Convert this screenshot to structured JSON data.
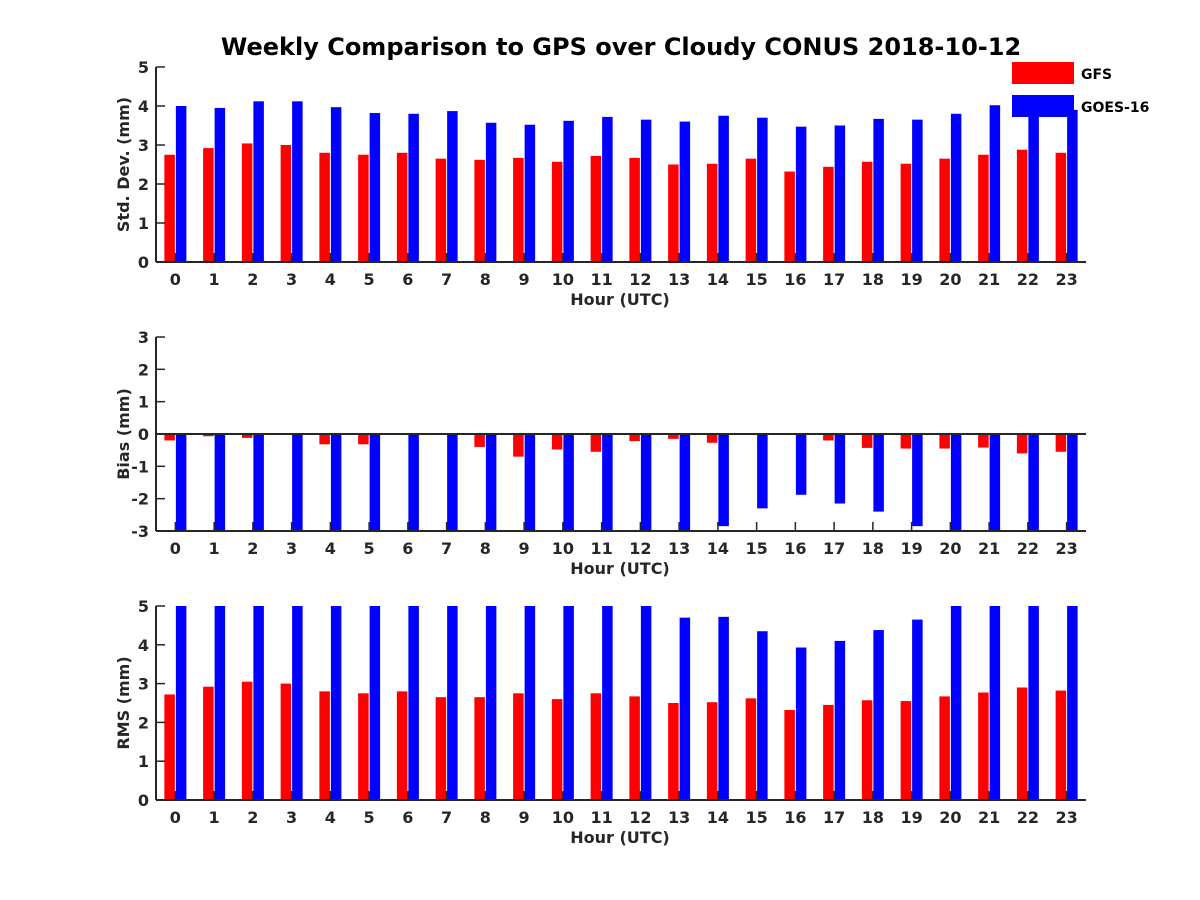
{
  "title": "Weekly Comparison to GPS over Cloudy CONUS 2018-10-12",
  "legend": [
    {
      "name": "GFS",
      "color": "#ff0000"
    },
    {
      "name": "GOES-16",
      "color": "#0000ff"
    }
  ],
  "chart_data": [
    {
      "type": "bar",
      "xlabel": "Hour (UTC)",
      "ylabel": "Std. Dev. (mm)",
      "ylim": [
        0,
        5
      ],
      "yticks": [
        0,
        1,
        2,
        3,
        4,
        5
      ],
      "categories": [
        "0",
        "1",
        "2",
        "3",
        "4",
        "5",
        "6",
        "7",
        "8",
        "9",
        "10",
        "11",
        "12",
        "13",
        "14",
        "15",
        "16",
        "17",
        "18",
        "19",
        "20",
        "21",
        "22",
        "23"
      ],
      "series": [
        {
          "name": "GFS",
          "color": "#ff0000",
          "values": [
            2.75,
            2.92,
            3.04,
            3.0,
            2.8,
            2.75,
            2.8,
            2.65,
            2.62,
            2.67,
            2.57,
            2.72,
            2.67,
            2.5,
            2.52,
            2.65,
            2.32,
            2.44,
            2.57,
            2.52,
            2.65,
            2.75,
            2.88,
            2.8
          ]
        },
        {
          "name": "GOES-16",
          "color": "#0000ff",
          "values": [
            4.0,
            3.95,
            4.12,
            4.12,
            3.97,
            3.82,
            3.8,
            3.87,
            3.57,
            3.52,
            3.62,
            3.72,
            3.65,
            3.6,
            3.75,
            3.7,
            3.47,
            3.5,
            3.67,
            3.65,
            3.8,
            4.02,
            4.17,
            3.9
          ]
        }
      ],
      "legend_position": "top-right"
    },
    {
      "type": "bar",
      "xlabel": "Hour (UTC)",
      "ylabel": "Bias (mm)",
      "ylim": [
        -3,
        3
      ],
      "yticks": [
        -3,
        -2,
        -1,
        0,
        1,
        2,
        3
      ],
      "categories": [
        "0",
        "1",
        "2",
        "3",
        "4",
        "5",
        "6",
        "7",
        "8",
        "9",
        "10",
        "11",
        "12",
        "13",
        "14",
        "15",
        "16",
        "17",
        "18",
        "19",
        "20",
        "21",
        "22",
        "23"
      ],
      "series": [
        {
          "name": "GFS",
          "color": "#ff0000",
          "values": [
            -0.2,
            -0.07,
            -0.12,
            -0.03,
            -0.32,
            -0.32,
            -0.03,
            -0.03,
            -0.4,
            -0.7,
            -0.48,
            -0.55,
            -0.22,
            -0.15,
            -0.27,
            -0.03,
            0.0,
            -0.2,
            -0.43,
            -0.45,
            -0.45,
            -0.42,
            -0.6,
            -0.55
          ]
        },
        {
          "name": "GOES-16",
          "color": "#0000ff",
          "values": [
            -3.0,
            -3.0,
            -3.0,
            -3.0,
            -3.0,
            -3.0,
            -3.0,
            -3.0,
            -3.0,
            -3.0,
            -3.0,
            -3.0,
            -3.0,
            -3.0,
            -2.85,
            -2.3,
            -1.88,
            -2.15,
            -2.4,
            -2.85,
            -3.0,
            -3.0,
            -3.0,
            -3.0
          ]
        }
      ],
      "zero_line": true
    },
    {
      "type": "bar",
      "xlabel": "Hour (UTC)",
      "ylabel": "RMS (mm)",
      "ylim": [
        0,
        5
      ],
      "yticks": [
        0,
        1,
        2,
        3,
        4,
        5
      ],
      "categories": [
        "0",
        "1",
        "2",
        "3",
        "4",
        "5",
        "6",
        "7",
        "8",
        "9",
        "10",
        "11",
        "12",
        "13",
        "14",
        "15",
        "16",
        "17",
        "18",
        "19",
        "20",
        "21",
        "22",
        "23"
      ],
      "series": [
        {
          "name": "GFS",
          "color": "#ff0000",
          "values": [
            2.72,
            2.92,
            3.05,
            3.0,
            2.8,
            2.75,
            2.8,
            2.65,
            2.65,
            2.75,
            2.6,
            2.75,
            2.67,
            2.5,
            2.52,
            2.62,
            2.32,
            2.45,
            2.57,
            2.55,
            2.67,
            2.77,
            2.9,
            2.82
          ]
        },
        {
          "name": "GOES-16",
          "color": "#0000ff",
          "values": [
            5.0,
            5.0,
            5.0,
            5.0,
            5.0,
            5.0,
            5.0,
            5.0,
            5.0,
            5.0,
            5.0,
            5.0,
            5.0,
            4.7,
            4.72,
            4.35,
            3.93,
            4.1,
            4.38,
            4.65,
            5.0,
            5.0,
            5.0,
            5.0
          ]
        }
      ]
    }
  ]
}
